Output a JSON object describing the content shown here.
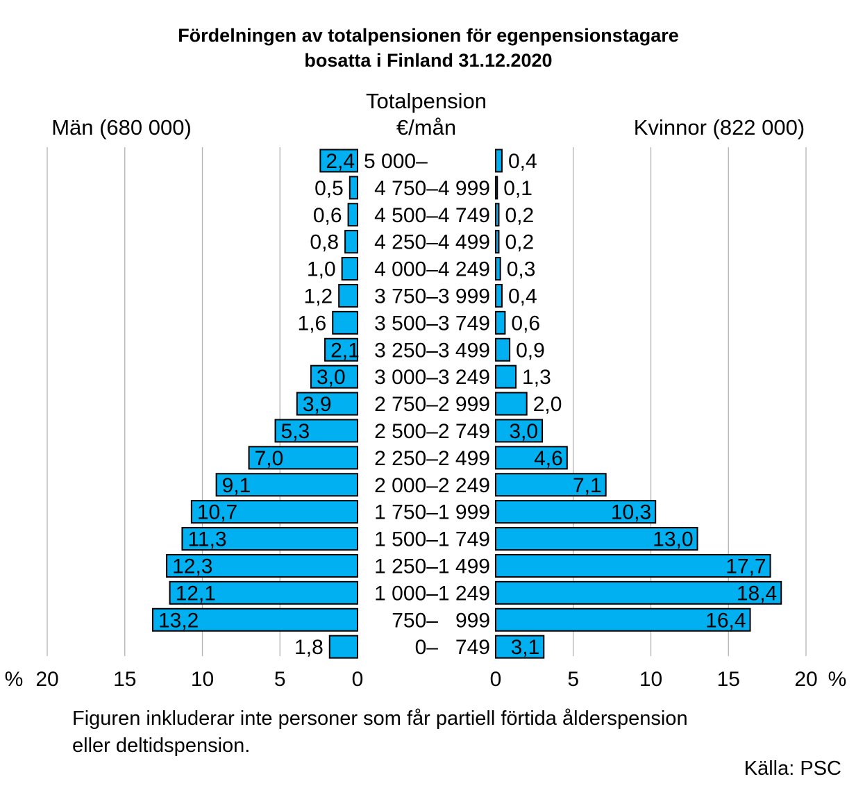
{
  "chart_data": {
    "type": "bar",
    "title_line1": "Fördelningen av totalpensionen för egenpensionstagare",
    "title_line2": "bosatta i Finland 31.12.2020",
    "category_header_line1": "Totalpension",
    "category_header_line2": "€/mån",
    "categories": [
      "5 000–",
      "4 750–4 999",
      "4 500–4 749",
      "4 250–4 499",
      "4 000–4 249",
      "3 750–3 999",
      "3 500–3 749",
      "3 250–3 499",
      "3 000–3 249",
      "2 750–2 999",
      "2 500–2 749",
      "2 250–2 499",
      "2 000–2 249",
      "1 750–1 999",
      "1 500–1 749",
      "1 250–1 499",
      "1 000–1 249",
      "750–   999",
      "0–   749"
    ],
    "series": [
      {
        "name": "Män (680 000)",
        "values": [
          2.4,
          0.5,
          0.6,
          0.8,
          1.0,
          1.2,
          1.6,
          2.1,
          3.0,
          3.9,
          5.3,
          7.0,
          9.1,
          10.7,
          11.3,
          12.3,
          12.1,
          13.2,
          1.8
        ],
        "labels": [
          "2,4",
          "0,5",
          "0,6",
          "0,8",
          "1,0",
          "1,2",
          "1,6",
          "2,1",
          "3,0",
          "3,9",
          "5,3",
          "7,0",
          "9,1",
          "10,7",
          "11,3",
          "12,3",
          "12,1",
          "13,2",
          "1,8"
        ]
      },
      {
        "name": "Kvinnor (822 000)",
        "values": [
          0.4,
          0.1,
          0.2,
          0.2,
          0.3,
          0.4,
          0.6,
          0.9,
          1.3,
          2.0,
          3.0,
          4.6,
          7.1,
          10.3,
          13.0,
          17.7,
          18.4,
          16.4,
          3.1
        ],
        "labels": [
          "0,4",
          "0,1",
          "0,2",
          "0,2",
          "0,3",
          "0,4",
          "0,6",
          "0,9",
          "1,3",
          "2,0",
          "3,0",
          "4,6",
          "7,1",
          "10,3",
          "13,0",
          "17,7",
          "18,4",
          "16,4",
          "3,1"
        ]
      }
    ],
    "xlim": [
      0,
      20
    ],
    "ticks": [
      0,
      5,
      10,
      15,
      20
    ],
    "tick_labels": [
      "0",
      "5",
      "10",
      "15",
      "20"
    ],
    "unit_label": "%",
    "grid": true,
    "bar_color": "#00B0F0",
    "bar_outline": "#000000",
    "footnote_line1": "Figuren inkluderar inte personer som får partiell förtida ålderspension",
    "footnote_line2": "eller deltidspension.",
    "source": "Källa: PSC"
  }
}
